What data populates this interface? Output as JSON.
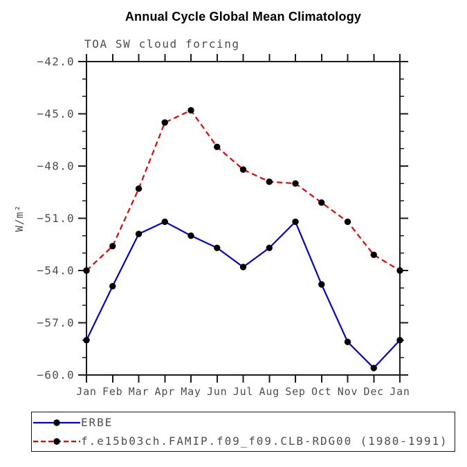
{
  "page": {
    "background": "#ffffff",
    "text_gray": "#4d4d4d",
    "axis_color": "#1a1a1a",
    "marker_color": "#000000"
  },
  "chart_data": {
    "type": "line",
    "title": "Annual Cycle Global Mean Climatology",
    "subtitle": "TOA SW cloud forcing",
    "ylabel": "W/m²",
    "x_categories": [
      "Jan",
      "Feb",
      "Mar",
      "Apr",
      "May",
      "Jun",
      "Jul",
      "Aug",
      "Sep",
      "Oct",
      "Nov",
      "Dec",
      "Jan"
    ],
    "ylim": [
      -60.0,
      -42.0
    ],
    "yticks_major": [
      -42.0,
      -45.0,
      -48.0,
      -51.0,
      -54.0,
      -57.0,
      -60.0
    ],
    "ytick_minor_step": 1.0,
    "grid": false,
    "legend_position": "bottom-left",
    "series": [
      {
        "name": "ERBE",
        "color": "#0000dd",
        "line_style": "solid",
        "marker": "filled-circle",
        "marker_color": "#000000",
        "values": [
          -58.0,
          -54.9,
          -51.9,
          -51.2,
          -52.0,
          -52.7,
          -53.8,
          -52.7,
          -51.2,
          -54.8,
          -58.1,
          -59.6,
          -58.0
        ]
      },
      {
        "name": "f.e15b03ch.FAMIP.f09_f09.CLB-RDG00 (1980-1991)",
        "color": "#ee0000",
        "line_style": "dashed",
        "marker": "filled-circle",
        "marker_color": "#000000",
        "values": [
          -54.0,
          -52.6,
          -49.3,
          -45.5,
          -44.8,
          -46.9,
          -48.2,
          -48.9,
          -49.0,
          -50.1,
          -51.2,
          -53.1,
          -54.0
        ]
      }
    ]
  }
}
